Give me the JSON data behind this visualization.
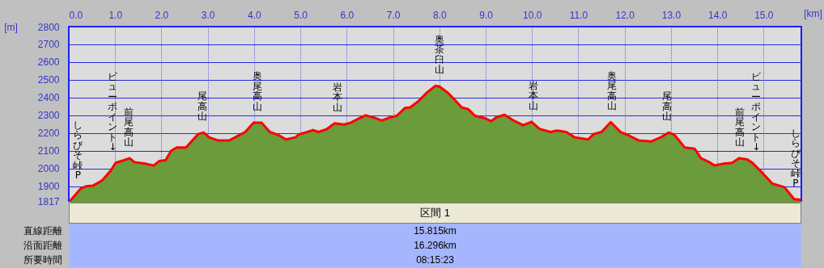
{
  "chart_data": {
    "type": "area",
    "xlabel": "[km]",
    "ylabel": "[m]",
    "xlim": [
      0,
      15.815
    ],
    "xticks": [
      {
        "value": 0,
        "label": "0.0"
      },
      {
        "value": 1,
        "label": "1.0"
      },
      {
        "value": 2,
        "label": "2.0"
      },
      {
        "value": 3,
        "label": "3.0"
      },
      {
        "value": 4,
        "label": "4.0"
      },
      {
        "value": 5,
        "label": "5.0"
      },
      {
        "value": 6,
        "label": "6.0"
      },
      {
        "value": 7,
        "label": "7.0"
      },
      {
        "value": 8,
        "label": "8.0"
      },
      {
        "value": 9,
        "label": "9.0"
      },
      {
        "value": 10,
        "label": "10.0"
      },
      {
        "value": 11,
        "label": "11.0"
      },
      {
        "value": 12,
        "label": "12.0"
      },
      {
        "value": 13,
        "label": "13.0"
      },
      {
        "value": 14,
        "label": "14.0"
      },
      {
        "value": 15,
        "label": "15.0"
      }
    ],
    "ylim": [
      1817,
      2800
    ],
    "yticks": [
      1817,
      1900,
      2000,
      2100,
      2200,
      2300,
      2400,
      2500,
      2600,
      2700,
      2800
    ],
    "grid": true,
    "series": [
      {
        "color": "#6b9b3a",
        "x": [
          0.03,
          0.26,
          0.37,
          0.52,
          0.72,
          0.9,
          1.01,
          1.19,
          1.31,
          1.42,
          1.66,
          1.83,
          1.95,
          2.09,
          2.21,
          2.33,
          2.53,
          2.79,
          2.91,
          3.03,
          3.23,
          3.46,
          3.64,
          3.81,
          3.99,
          4.16,
          4.34,
          4.51,
          4.69,
          4.89,
          4.98,
          5.15,
          5.27,
          5.39,
          5.56,
          5.74,
          5.94,
          6.09,
          6.26,
          6.41,
          6.61,
          6.76,
          6.9,
          7.08,
          7.26,
          7.37,
          7.55,
          7.72,
          7.92,
          8.01,
          8.19,
          8.33,
          8.48,
          8.62,
          8.77,
          9,
          9.12,
          9.23,
          9.41,
          9.58,
          9.81,
          9.99,
          10.16,
          10.4,
          10.54,
          10.74,
          10.92,
          11.21,
          11.33,
          11.5,
          11.7,
          11.91,
          12.08,
          12.31,
          12.58,
          12.78,
          12.95,
          13.07,
          13.3,
          13.51,
          13.65,
          13.83,
          13.94,
          14.12,
          14.32,
          14.47,
          14.64,
          14.76,
          14.99,
          15.19,
          15.45,
          15.66,
          15.8
        ],
        "values": [
          1818,
          1888,
          1900,
          1903,
          1933,
          1986,
          2032,
          2047,
          2058,
          2036,
          2027,
          2017,
          2042,
          2047,
          2100,
          2118,
          2118,
          2194,
          2203,
          2176,
          2158,
          2158,
          2183,
          2206,
          2259,
          2259,
          2206,
          2191,
          2164,
          2176,
          2194,
          2206,
          2217,
          2206,
          2221,
          2255,
          2248,
          2259,
          2282,
          2300,
          2285,
          2270,
          2285,
          2297,
          2342,
          2345,
          2380,
          2426,
          2467,
          2461,
          2426,
          2388,
          2345,
          2335,
          2297,
          2282,
          2267,
          2289,
          2303,
          2274,
          2244,
          2264,
          2224,
          2206,
          2214,
          2206,
          2176,
          2164,
          2194,
          2206,
          2262,
          2206,
          2188,
          2158,
          2153,
          2176,
          2203,
          2191,
          2118,
          2112,
          2058,
          2036,
          2017,
          2027,
          2032,
          2058,
          2052,
          2032,
          1971,
          1915,
          1895,
          1827,
          1824
        ]
      },
      {
        "type": "line",
        "color": "#ff0000",
        "x": [
          0.03,
          0.26,
          0.37,
          0.52,
          0.72,
          0.9,
          1.01,
          1.19,
          1.31,
          1.42,
          1.66,
          1.83,
          1.95,
          2.09,
          2.21,
          2.33,
          2.53,
          2.79,
          2.91,
          3.03,
          3.23,
          3.46,
          3.64,
          3.81,
          3.99,
          4.16,
          4.34,
          4.51,
          4.69,
          4.89,
          4.98,
          5.15,
          5.27,
          5.39,
          5.56,
          5.74,
          5.94,
          6.09,
          6.26,
          6.41,
          6.61,
          6.76,
          6.9,
          7.08,
          7.26,
          7.37,
          7.55,
          7.72,
          7.92,
          8.01,
          8.19,
          8.33,
          8.48,
          8.62,
          8.77,
          9,
          9.12,
          9.23,
          9.41,
          9.58,
          9.81,
          9.99,
          10.16,
          10.4,
          10.54,
          10.74,
          10.92,
          11.21,
          11.33,
          11.5,
          11.7,
          11.91,
          12.08,
          12.31,
          12.58,
          12.78,
          12.95,
          13.07,
          13.3,
          13.51,
          13.65,
          13.83,
          13.94,
          14.12,
          14.32,
          14.47,
          14.64,
          14.76,
          14.99,
          15.19,
          15.45,
          15.66,
          15.8
        ],
        "values": [
          1818,
          1888,
          1900,
          1903,
          1933,
          1986,
          2032,
          2047,
          2058,
          2036,
          2027,
          2017,
          2042,
          2047,
          2100,
          2118,
          2118,
          2194,
          2203,
          2176,
          2158,
          2158,
          2183,
          2206,
          2259,
          2259,
          2206,
          2191,
          2164,
          2176,
          2194,
          2206,
          2217,
          2206,
          2221,
          2255,
          2248,
          2259,
          2282,
          2300,
          2285,
          2270,
          2285,
          2297,
          2342,
          2345,
          2380,
          2426,
          2467,
          2461,
          2426,
          2388,
          2345,
          2335,
          2297,
          2282,
          2267,
          2289,
          2303,
          2274,
          2244,
          2264,
          2224,
          2206,
          2214,
          2206,
          2176,
          2164,
          2194,
          2206,
          2262,
          2206,
          2188,
          2158,
          2153,
          2176,
          2203,
          2191,
          2118,
          2112,
          2058,
          2036,
          2017,
          2027,
          2032,
          2058,
          2052,
          2032,
          1971,
          1915,
          1895,
          1827,
          1824
        ]
      }
    ],
    "annotations": [
      {
        "text": "しらびそ峠P",
        "x": 0.2,
        "y": 1870
      },
      {
        "text": "ビューポイント↓",
        "x": 0.95,
        "y": 2030
      },
      {
        "text": "前尾高山",
        "x": 1.29,
        "y": 2058
      },
      {
        "text": "尾高山",
        "x": 2.89,
        "y": 2203
      },
      {
        "text": "奥尾高山",
        "x": 4.08,
        "y": 2259
      },
      {
        "text": "岩本山",
        "x": 5.81,
        "y": 2255
      },
      {
        "text": "奥茶臼山",
        "x": 8.0,
        "y": 2467
      },
      {
        "text": "岩本山",
        "x": 10.03,
        "y": 2264
      },
      {
        "text": "奥尾高山",
        "x": 11.73,
        "y": 2262
      },
      {
        "text": "尾高山",
        "x": 12.92,
        "y": 2203
      },
      {
        "text": "前尾高山",
        "x": 14.49,
        "y": 2058
      },
      {
        "text": "ビューポイント↓",
        "x": 14.84,
        "y": 2030
      },
      {
        "text": "しらびそ峠P",
        "x": 15.69,
        "y": 1824
      },
      "区間 1",
      "直線距離",
      "15.815km",
      "沿面距離",
      "16.296km",
      "所要時間",
      "08:15:23"
    ]
  }
}
